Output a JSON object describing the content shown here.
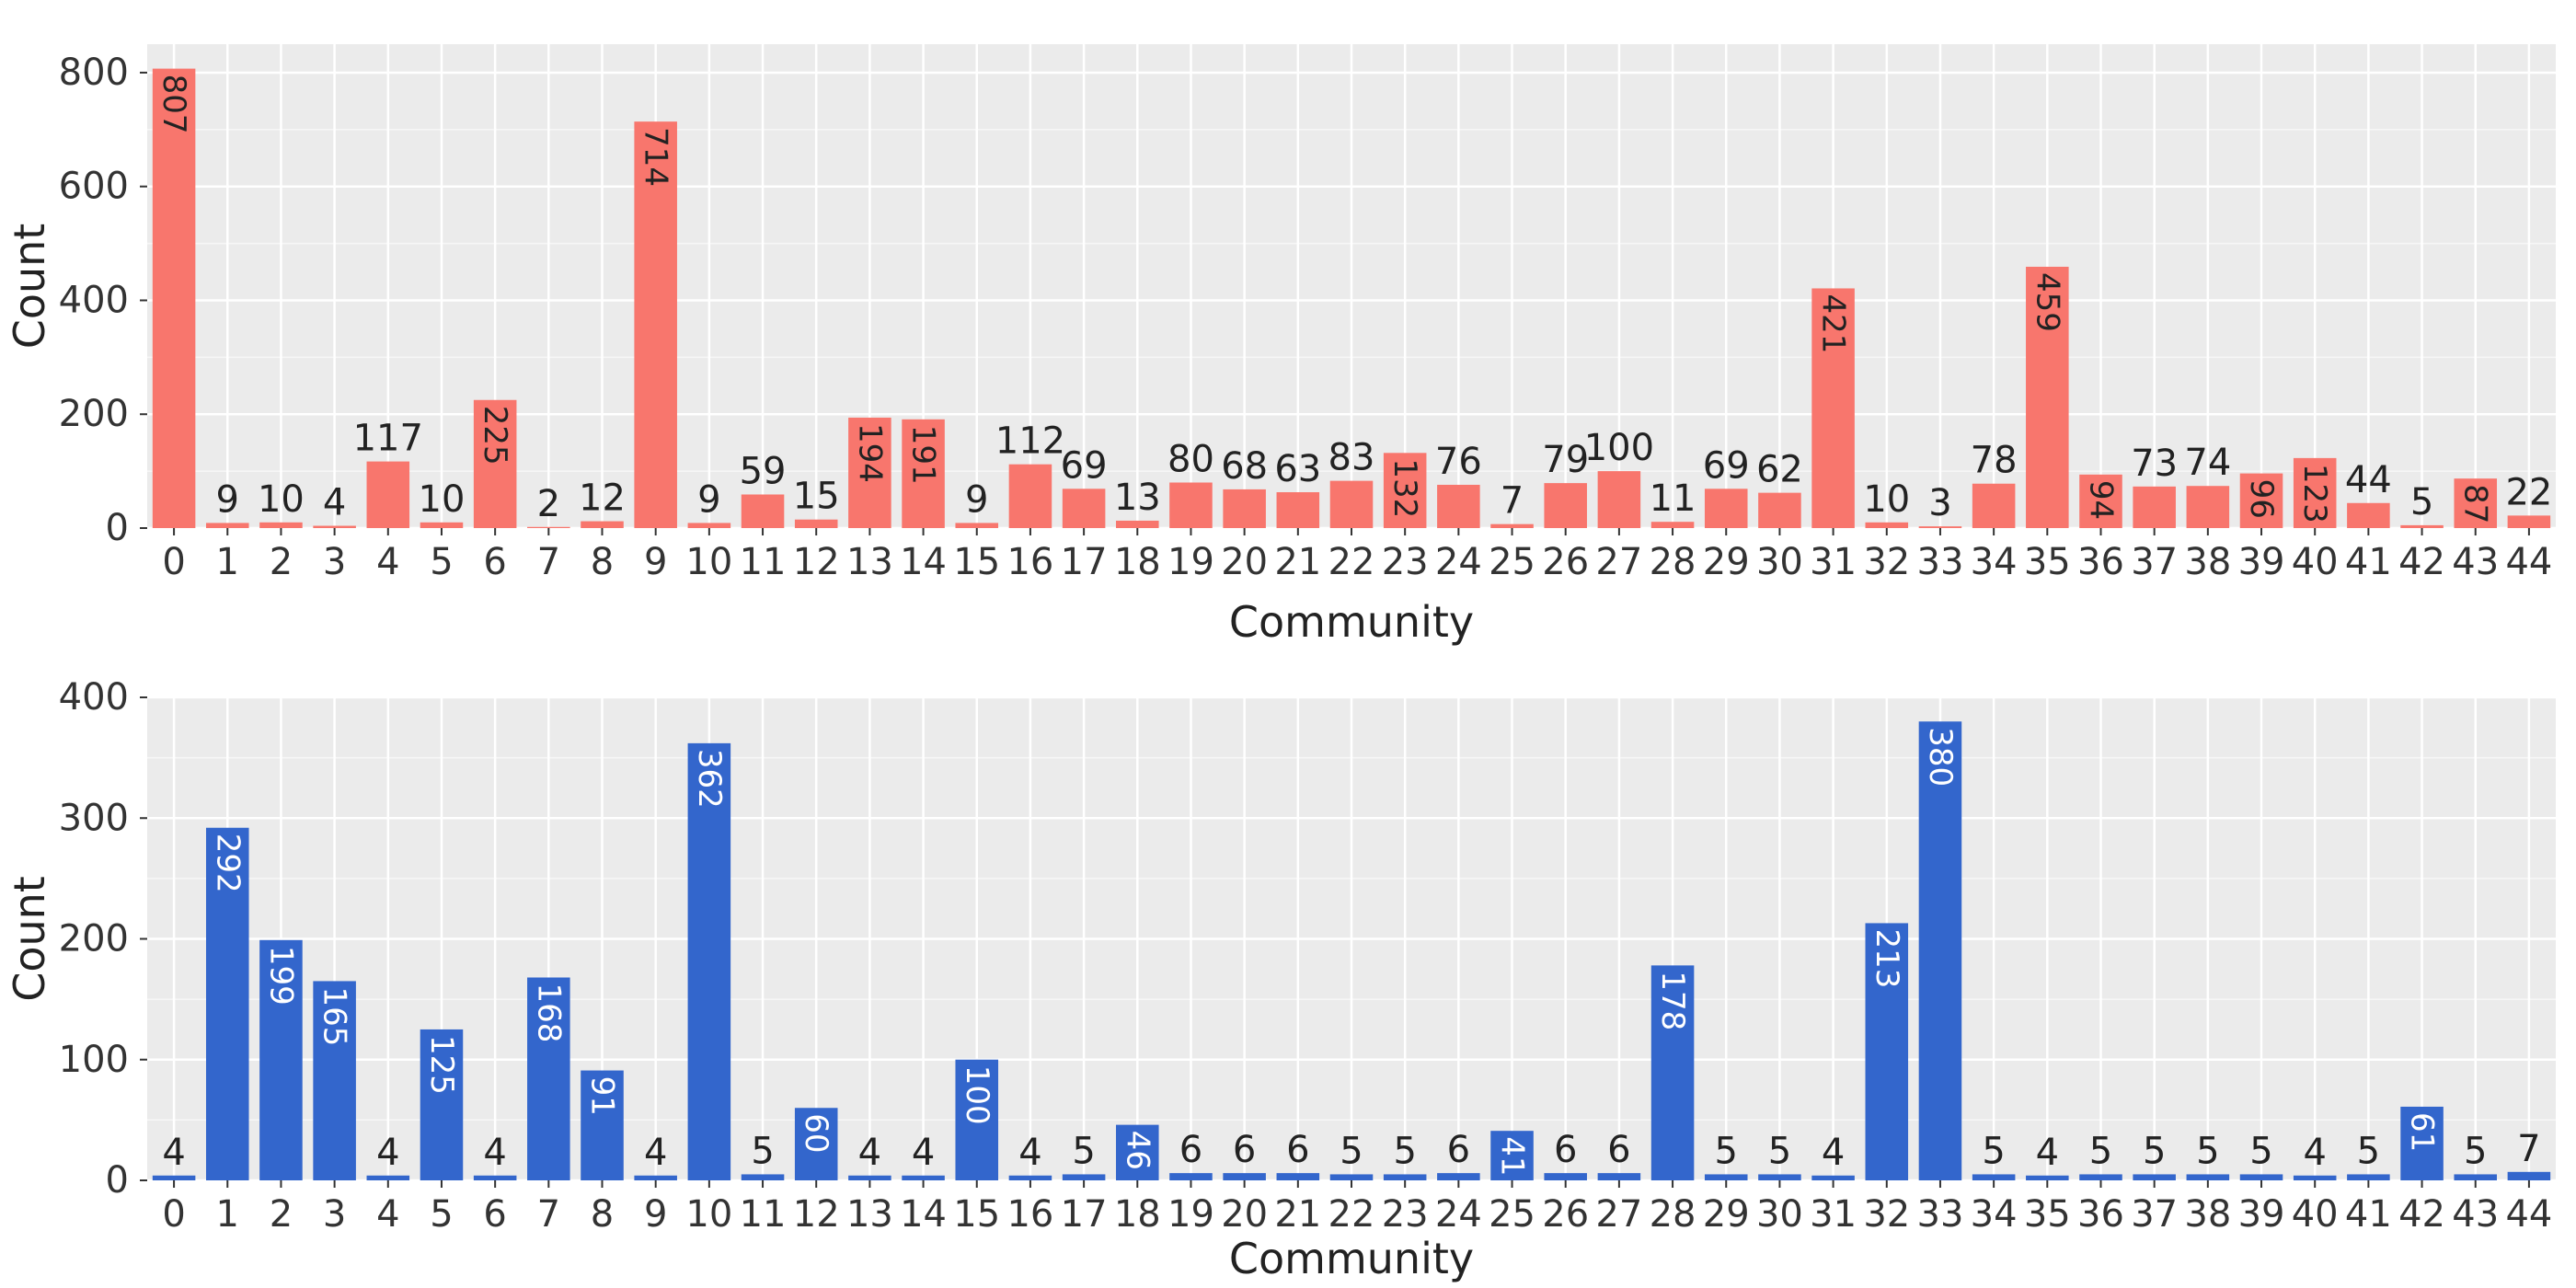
{
  "chart_data": [
    {
      "type": "bar",
      "color": "#F8766D",
      "xlabel": "Community",
      "ylabel": "Count",
      "ylim": [
        0,
        850
      ],
      "yticks": [
        0,
        200,
        400,
        600,
        800
      ],
      "grid": true,
      "categories": [
        "0",
        "1",
        "2",
        "3",
        "4",
        "5",
        "6",
        "7",
        "8",
        "9",
        "10",
        "11",
        "12",
        "13",
        "14",
        "15",
        "16",
        "17",
        "18",
        "19",
        "20",
        "21",
        "22",
        "23",
        "24",
        "25",
        "26",
        "27",
        "28",
        "29",
        "30",
        "31",
        "32",
        "33",
        "34",
        "35",
        "36",
        "37",
        "38",
        "39",
        "40",
        "41",
        "42",
        "43",
        "44"
      ],
      "values": [
        807,
        9,
        10,
        4,
        117,
        10,
        225,
        2,
        12,
        714,
        9,
        59,
        15,
        194,
        191,
        9,
        112,
        69,
        13,
        80,
        68,
        63,
        83,
        132,
        76,
        7,
        79,
        100,
        11,
        69,
        62,
        421,
        10,
        3,
        78,
        459,
        94,
        73,
        74,
        96,
        123,
        44,
        5,
        87,
        22
      ]
    },
    {
      "type": "bar",
      "color": "#3366CC",
      "xlabel": "Community",
      "ylabel": "Count",
      "ylim": [
        0,
        400
      ],
      "yticks": [
        0,
        100,
        200,
        300,
        400
      ],
      "grid": true,
      "categories": [
        "0",
        "1",
        "2",
        "3",
        "4",
        "5",
        "6",
        "7",
        "8",
        "9",
        "10",
        "11",
        "12",
        "13",
        "14",
        "15",
        "16",
        "17",
        "18",
        "19",
        "20",
        "21",
        "22",
        "23",
        "24",
        "25",
        "26",
        "27",
        "28",
        "29",
        "30",
        "31",
        "32",
        "33",
        "34",
        "35",
        "36",
        "37",
        "38",
        "39",
        "40",
        "41",
        "42",
        "43",
        "44"
      ],
      "values": [
        4,
        292,
        199,
        165,
        4,
        125,
        4,
        168,
        91,
        4,
        362,
        5,
        60,
        4,
        4,
        100,
        4,
        5,
        46,
        6,
        6,
        6,
        5,
        5,
        6,
        41,
        6,
        6,
        178,
        5,
        5,
        4,
        213,
        380,
        5,
        4,
        5,
        5,
        5,
        5,
        4,
        5,
        61,
        5,
        7
      ]
    }
  ]
}
